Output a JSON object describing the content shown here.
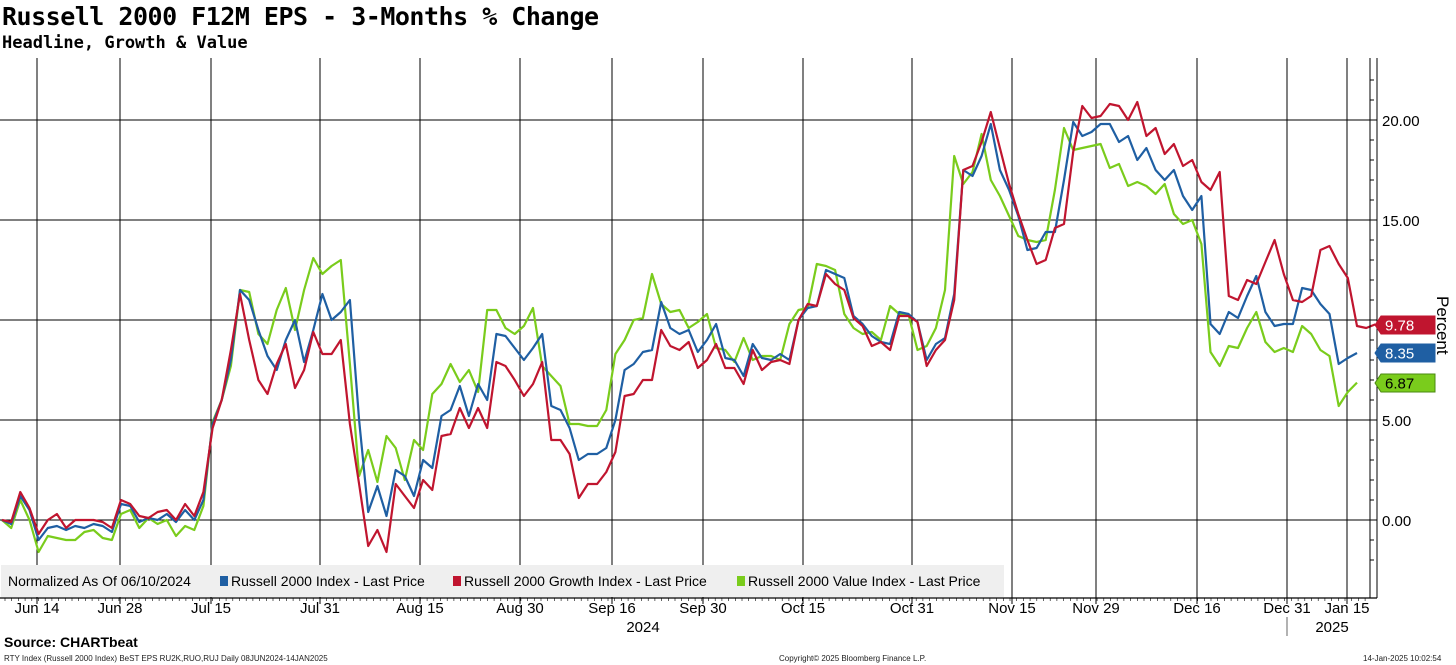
{
  "header": {
    "title": "Russell 2000 F12M EPS - 3-Months % Change",
    "subtitle": "Headline, Growth & Value"
  },
  "footer": {
    "source": "Source: CHARTbeat",
    "details": "RTY Index (Russell 2000 Index) BeST EPS RU2K,RUO,RUJ  Daily 08JUN2024-14JAN2025",
    "copyright": "Copyright© 2025 Bloomberg Finance L.P.",
    "timestamp": "14-Jan-2025 10:02:54"
  },
  "colors": {
    "headline": "#1f5fa3",
    "growth": "#c0152f",
    "value": "#7acc1c",
    "grid": "#000000"
  },
  "chart_data": {
    "type": "line",
    "ylabel": "Percent",
    "ylim": [
      -2.5,
      23
    ],
    "yticks": [
      0,
      5,
      10,
      15,
      20
    ],
    "ytick_labels": [
      "0.00",
      "5.00",
      "10.00",
      "15.00",
      "20.00"
    ],
    "x_tick_labels": [
      "Jun 14",
      "Jun 28",
      "Jul 15",
      "Jul 31",
      "Aug 15",
      "Aug 30",
      "Sep 16",
      "Sep 30",
      "Oct 15",
      "Oct 31",
      "Nov 15",
      "Nov 29",
      "Dec 16",
      "Dec 31",
      "Jan 15"
    ],
    "year_labels": [
      "2024",
      "2025"
    ],
    "legend_prefix": "Normalized As Of 06/10/2024",
    "legend_position": "bottom-left",
    "grid": true,
    "series": [
      {
        "name": "Russell 2000 Index - Last Price",
        "key": "headline",
        "last_label": "8.35",
        "values": [
          0.0,
          -0.2,
          1.2,
          0.5,
          -1.0,
          -0.4,
          -0.3,
          -0.5,
          -0.3,
          -0.4,
          -0.2,
          -0.3,
          -0.6,
          0.8,
          0.7,
          -0.1,
          0.1,
          0.0,
          0.3,
          -0.1,
          0.5,
          0.0,
          1.0,
          4.8,
          6.0,
          8.0,
          11.5,
          11.0,
          9.5,
          8.2,
          7.5,
          9.0,
          10.0,
          7.9,
          9.5,
          11.3,
          10.0,
          10.4,
          11.0,
          5.0,
          0.4,
          1.7,
          0.2,
          2.5,
          2.2,
          1.2,
          3.0,
          2.6,
          5.2,
          5.5,
          6.7,
          5.2,
          6.8,
          6.0,
          9.3,
          9.2,
          8.6,
          8.0,
          8.6,
          9.3,
          5.7,
          5.5,
          4.6,
          3.0,
          3.3,
          3.3,
          3.6,
          5.0,
          7.5,
          7.8,
          8.4,
          8.5,
          10.9,
          9.6,
          9.3,
          9.5,
          8.4,
          9.0,
          9.8,
          8.1,
          8.0,
          7.2,
          8.8,
          8.1,
          8.0,
          8.3,
          8.0,
          10.0,
          10.6,
          10.7,
          12.5,
          12.3,
          12.1,
          10.2,
          9.8,
          9.2,
          8.9,
          8.8,
          10.4,
          10.3,
          9.9,
          8.0,
          8.8,
          9.1,
          11.3,
          17.5,
          17.2,
          18.2,
          19.8,
          17.5,
          16.5,
          15.2,
          13.5,
          13.6,
          14.4,
          14.4,
          17.0,
          19.9,
          19.2,
          19.4,
          19.8,
          19.8,
          18.9,
          19.2,
          18.0,
          18.6,
          17.5,
          17.0,
          17.5,
          16.2,
          15.5,
          16.2,
          9.8,
          9.3,
          10.4,
          10.1,
          11.2,
          12.2,
          10.4,
          9.7,
          9.8,
          9.8,
          11.6,
          11.5,
          10.8,
          10.3,
          7.8,
          8.1,
          8.35
        ]
      },
      {
        "name": "Russell 2000 Growth Index - Last Price",
        "key": "growth",
        "last_label": "9.78",
        "values": [
          0.0,
          -0.1,
          1.4,
          0.6,
          -0.7,
          0.0,
          0.3,
          -0.4,
          0.0,
          0.0,
          0.0,
          -0.1,
          -0.4,
          1.0,
          0.8,
          0.2,
          0.1,
          0.4,
          0.5,
          0.0,
          0.8,
          0.2,
          1.4,
          4.6,
          6.0,
          8.5,
          11.3,
          9.0,
          7.0,
          6.3,
          7.8,
          8.8,
          6.6,
          7.5,
          9.4,
          8.3,
          8.3,
          9.0,
          4.8,
          1.8,
          -1.3,
          -0.5,
          -1.6,
          1.8,
          1.2,
          0.6,
          2.0,
          1.5,
          4.2,
          4.3,
          5.6,
          4.6,
          5.6,
          4.6,
          7.9,
          7.7,
          7.0,
          6.2,
          6.8,
          7.9,
          4.0,
          4.0,
          3.3,
          1.1,
          1.8,
          1.8,
          2.4,
          3.4,
          6.2,
          6.3,
          7.0,
          7.0,
          9.5,
          8.7,
          8.5,
          8.9,
          7.6,
          8.0,
          8.8,
          7.6,
          7.6,
          6.8,
          8.5,
          7.5,
          7.9,
          8.0,
          7.8,
          10.0,
          10.8,
          10.7,
          12.3,
          11.8,
          11.5,
          10.1,
          9.7,
          8.7,
          8.9,
          8.5,
          10.2,
          10.2,
          9.9,
          7.7,
          8.5,
          9.0,
          11.0,
          17.5,
          17.7,
          18.9,
          20.4,
          18.6,
          16.8,
          15.3,
          14.0,
          12.8,
          13.0,
          14.6,
          14.8,
          18.4,
          20.7,
          20.1,
          20.2,
          20.8,
          20.7,
          20.0,
          20.9,
          19.2,
          19.6,
          18.3,
          18.8,
          17.7,
          18.0,
          16.9,
          16.5,
          17.4,
          11.2,
          11.0,
          12.0,
          11.8,
          12.9,
          14.0,
          12.3,
          11.0,
          10.9,
          11.2,
          13.5,
          13.7,
          12.8,
          12.1,
          9.7,
          9.6,
          9.78
        ]
      },
      {
        "name": "Russell 2000 Value Index - Last Price",
        "key": "value",
        "last_label": "6.87",
        "values": [
          0.0,
          -0.4,
          1.0,
          0.0,
          -1.6,
          -0.8,
          -0.9,
          -1.0,
          -1.0,
          -0.6,
          -0.5,
          -0.9,
          -1.0,
          0.3,
          0.5,
          -0.4,
          0.1,
          -0.2,
          0.0,
          -0.8,
          -0.3,
          -0.5,
          0.7,
          4.9,
          6.0,
          7.7,
          11.5,
          11.4,
          9.3,
          8.8,
          10.5,
          11.6,
          9.5,
          11.5,
          13.1,
          12.3,
          12.7,
          13.0,
          7.8,
          2.2,
          3.5,
          1.9,
          4.2,
          3.6,
          2.0,
          4.0,
          3.5,
          6.3,
          6.8,
          7.8,
          6.9,
          7.5,
          6.4,
          10.5,
          10.5,
          9.6,
          9.3,
          9.7,
          10.6,
          7.7,
          7.2,
          6.7,
          4.8,
          4.8,
          4.7,
          4.7,
          5.5,
          8.3,
          9.0,
          10.0,
          10.1,
          12.3,
          10.8,
          10.4,
          10.5,
          9.6,
          9.9,
          10.3,
          8.6,
          8.5,
          7.9,
          9.1,
          8.0,
          8.2,
          8.2,
          8.0,
          9.8,
          10.5,
          10.6,
          12.8,
          12.7,
          12.5,
          10.3,
          9.6,
          9.3,
          9.4,
          9.0,
          10.7,
          10.3,
          10.3,
          8.5,
          8.7,
          9.6,
          11.5,
          18.2,
          16.8,
          17.4,
          19.3,
          17.0,
          16.2,
          15.2,
          14.2,
          14.0,
          13.9,
          14.0,
          16.5,
          19.6,
          18.5,
          18.6,
          18.7,
          18.8,
          17.6,
          17.8,
          16.7,
          16.9,
          16.7,
          16.3,
          16.8,
          15.3,
          14.8,
          15.0,
          13.8,
          8.4,
          7.7,
          8.7,
          8.6,
          9.6,
          10.4,
          8.9,
          8.4,
          8.6,
          8.4,
          9.7,
          9.3,
          8.5,
          8.2,
          5.7,
          6.4,
          6.87
        ]
      }
    ]
  }
}
